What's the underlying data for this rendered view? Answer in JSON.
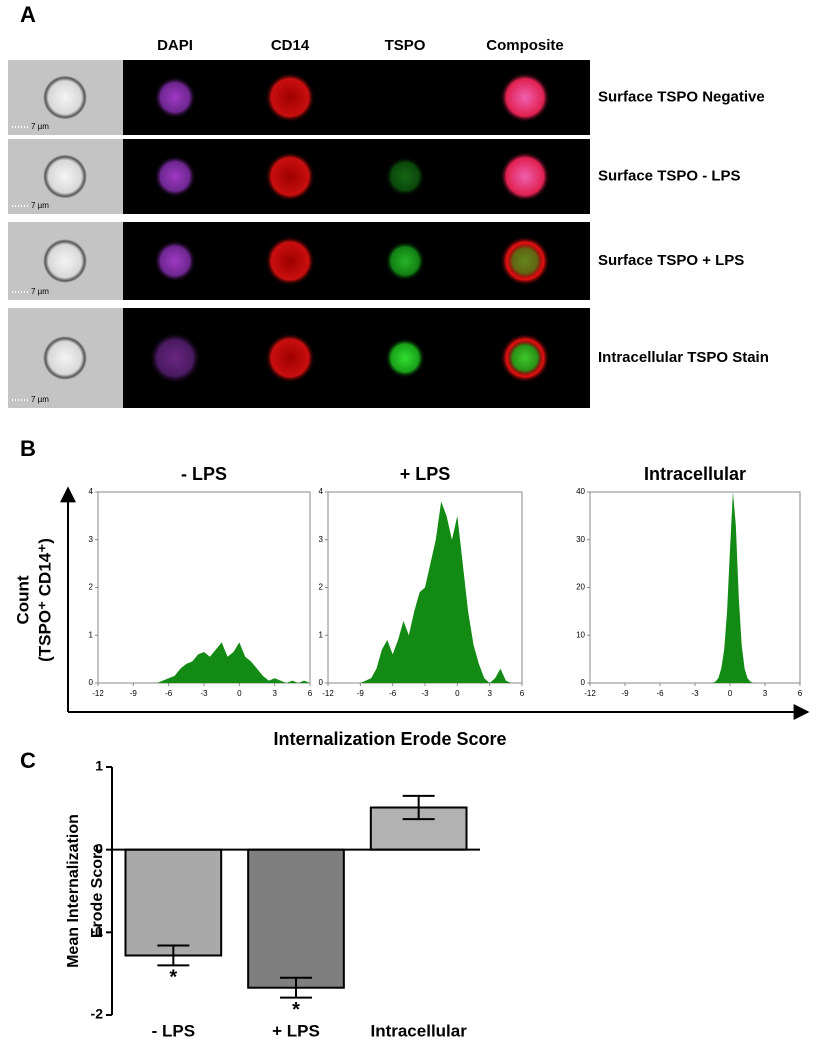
{
  "panel_labels": [
    "A",
    "B",
    "C"
  ],
  "panel_a": {
    "columns": [
      "DAPI",
      "CD14",
      "TSPO",
      "Composite"
    ],
    "rows": [
      "Surface TSPO Negative",
      "Surface TSPO - LPS",
      "Surface TSPO + LPS",
      "Intracellular TSPO  Stain"
    ],
    "scale_bar": "7 µm"
  },
  "panel_b": {
    "ylabel": [
      "Count",
      "(TSPO⁺ CD14⁺)"
    ],
    "xlabel": "Internalization Erode Score"
  },
  "chart_data": [
    {
      "type": "area",
      "title": "- LPS",
      "color": "#138a13",
      "x": [
        -7,
        -6.5,
        -6,
        -5.5,
        -5,
        -4.5,
        -4,
        -3.5,
        -3,
        -2.5,
        -2,
        -1.5,
        -1,
        -0.5,
        0,
        0.5,
        1,
        1.5,
        2,
        2.5,
        3,
        3.5,
        4,
        4.5,
        5,
        5.5,
        6
      ],
      "values": [
        0,
        0.05,
        0.1,
        0.15,
        0.3,
        0.4,
        0.45,
        0.6,
        0.65,
        0.55,
        0.7,
        0.85,
        0.55,
        0.65,
        0.85,
        0.55,
        0.45,
        0.3,
        0.15,
        0.05,
        0.1,
        0.05,
        0,
        0.05,
        0,
        0.05,
        0
      ],
      "xlim": [
        -12,
        6
      ],
      "xticks": [
        -12,
        -9,
        -6,
        -3,
        0,
        3,
        6
      ],
      "ylim": [
        0,
        4
      ],
      "yticks": [
        0,
        1,
        2,
        3,
        4
      ]
    },
    {
      "type": "area",
      "title": "+ LPS",
      "color": "#138a13",
      "x": [
        -9,
        -8.5,
        -8,
        -7.5,
        -7,
        -6.5,
        -6,
        -5.5,
        -5,
        -4.5,
        -4,
        -3.5,
        -3,
        -2.5,
        -2,
        -1.5,
        -1,
        -0.5,
        0,
        0.5,
        1,
        1.5,
        2,
        2.5,
        3,
        3.5,
        4,
        4.5,
        5
      ],
      "values": [
        0,
        0.05,
        0.1,
        0.3,
        0.7,
        0.9,
        0.6,
        0.9,
        1.3,
        1.0,
        1.5,
        1.9,
        2.0,
        2.5,
        3.0,
        3.8,
        3.5,
        3.0,
        3.5,
        2.5,
        1.5,
        0.8,
        0.4,
        0.1,
        0,
        0.1,
        0.3,
        0.05,
        0
      ],
      "xlim": [
        -12,
        6
      ],
      "xticks": [
        -12,
        -9,
        -6,
        -3,
        0,
        3,
        6
      ],
      "ylim": [
        0,
        4
      ],
      "yticks": [
        0,
        1,
        2,
        3,
        4
      ]
    },
    {
      "type": "area",
      "title": "Intracellular",
      "color": "#138a13",
      "x": [
        -1.5,
        -1.25,
        -1,
        -0.75,
        -0.5,
        -0.25,
        0,
        0.25,
        0.5,
        0.75,
        1,
        1.25,
        1.5,
        1.75,
        2
      ],
      "values": [
        0,
        0.3,
        1,
        3,
        7,
        15,
        28,
        40,
        33,
        18,
        8,
        3,
        1,
        0.3,
        0
      ],
      "xlim": [
        -12,
        6
      ],
      "xticks": [
        -12,
        -9,
        -6,
        -3,
        0,
        3,
        6
      ],
      "ylim": [
        0,
        40
      ],
      "yticks": [
        0,
        10,
        20,
        30,
        40
      ]
    },
    {
      "type": "bar",
      "ylabel": [
        "Mean Internalization",
        "Erode Score"
      ],
      "categories": [
        "- LPS",
        "+ LPS",
        "Intracellular"
      ],
      "values": [
        -1.28,
        -1.67,
        0.51
      ],
      "errors": [
        0.12,
        0.12,
        0.14
      ],
      "colors": [
        "#a9a9a9",
        "#7f7f7f",
        "#b2b2b2"
      ],
      "significance": [
        "*",
        "*",
        null
      ],
      "ylim": [
        -2,
        1
      ],
      "yticks": [
        -2,
        -1,
        0,
        1
      ]
    }
  ]
}
